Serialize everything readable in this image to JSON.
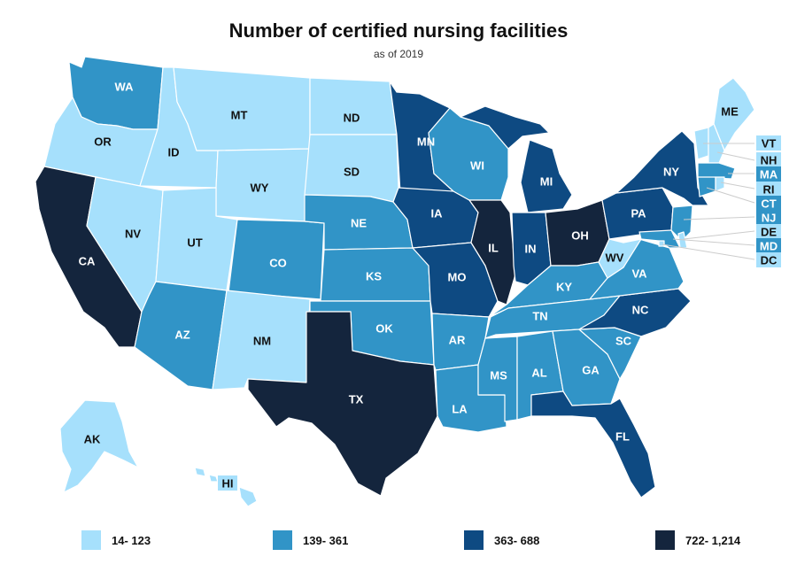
{
  "title": "Number of certified nursing facilities",
  "subtitle": "as of 2019",
  "colors": {
    "c1": "#a6e0fc",
    "c2": "#3194c7",
    "c3": "#0e4a82",
    "c4": "#14253d",
    "label_dark": "#111111",
    "label_light": "#ffffff",
    "leader": "#cccccc"
  },
  "legend": [
    {
      "label": "14- 123",
      "color_key": "c1"
    },
    {
      "label": "139- 361",
      "color_key": "c2"
    },
    {
      "label": "363- 688",
      "color_key": "c3"
    },
    {
      "label": "722- 1,214",
      "color_key": "c4"
    }
  ],
  "states": {
    "WA": {
      "label": "WA",
      "bin": 2
    },
    "OR": {
      "label": "OR",
      "bin": 1
    },
    "CA": {
      "label": "CA",
      "bin": 4
    },
    "ID": {
      "label": "ID",
      "bin": 1
    },
    "NV": {
      "label": "NV",
      "bin": 1
    },
    "MT": {
      "label": "MT",
      "bin": 1
    },
    "WY": {
      "label": "WY",
      "bin": 1
    },
    "UT": {
      "label": "UT",
      "bin": 1
    },
    "AZ": {
      "label": "AZ",
      "bin": 2
    },
    "CO": {
      "label": "CO",
      "bin": 2
    },
    "NM": {
      "label": "NM",
      "bin": 1
    },
    "ND": {
      "label": "ND",
      "bin": 1
    },
    "SD": {
      "label": "SD",
      "bin": 1
    },
    "NE": {
      "label": "NE",
      "bin": 2
    },
    "KS": {
      "label": "KS",
      "bin": 2
    },
    "OK": {
      "label": "OK",
      "bin": 2
    },
    "TX": {
      "label": "TX",
      "bin": 4
    },
    "MN": {
      "label": "MN",
      "bin": 3
    },
    "IA": {
      "label": "IA",
      "bin": 3
    },
    "MO": {
      "label": "MO",
      "bin": 3
    },
    "AR": {
      "label": "AR",
      "bin": 2
    },
    "LA": {
      "label": "LA",
      "bin": 2
    },
    "WI": {
      "label": "WI",
      "bin": 2
    },
    "IL": {
      "label": "IL",
      "bin": 4
    },
    "MI": {
      "label": "MI",
      "bin": 3
    },
    "IN": {
      "label": "IN",
      "bin": 3
    },
    "OH": {
      "label": "OH",
      "bin": 4
    },
    "KY": {
      "label": "KY",
      "bin": 2
    },
    "TN": {
      "label": "TN",
      "bin": 2
    },
    "MS": {
      "label": "MS",
      "bin": 2
    },
    "AL": {
      "label": "AL",
      "bin": 2
    },
    "GA": {
      "label": "GA",
      "bin": 2
    },
    "FL": {
      "label": "FL",
      "bin": 3
    },
    "SC": {
      "label": "SC",
      "bin": 2
    },
    "NC": {
      "label": "NC",
      "bin": 3
    },
    "VA": {
      "label": "VA",
      "bin": 2
    },
    "WV": {
      "label": "WV",
      "bin": 1
    },
    "PA": {
      "label": "PA",
      "bin": 3
    },
    "NY": {
      "label": "NY",
      "bin": 3
    },
    "ME": {
      "label": "ME",
      "bin": 1
    },
    "VT": {
      "label": "VT",
      "bin": 1
    },
    "NH": {
      "label": "NH",
      "bin": 1
    },
    "MA": {
      "label": "MA",
      "bin": 2
    },
    "RI": {
      "label": "RI",
      "bin": 1
    },
    "CT": {
      "label": "CT",
      "bin": 2
    },
    "NJ": {
      "label": "NJ",
      "bin": 2
    },
    "DE": {
      "label": "DE",
      "bin": 1
    },
    "MD": {
      "label": "MD",
      "bin": 2
    },
    "DC": {
      "label": "DC",
      "bin": 1
    },
    "AK": {
      "label": "AK",
      "bin": 1
    },
    "HI": {
      "label": "HI",
      "bin": 1
    }
  }
}
